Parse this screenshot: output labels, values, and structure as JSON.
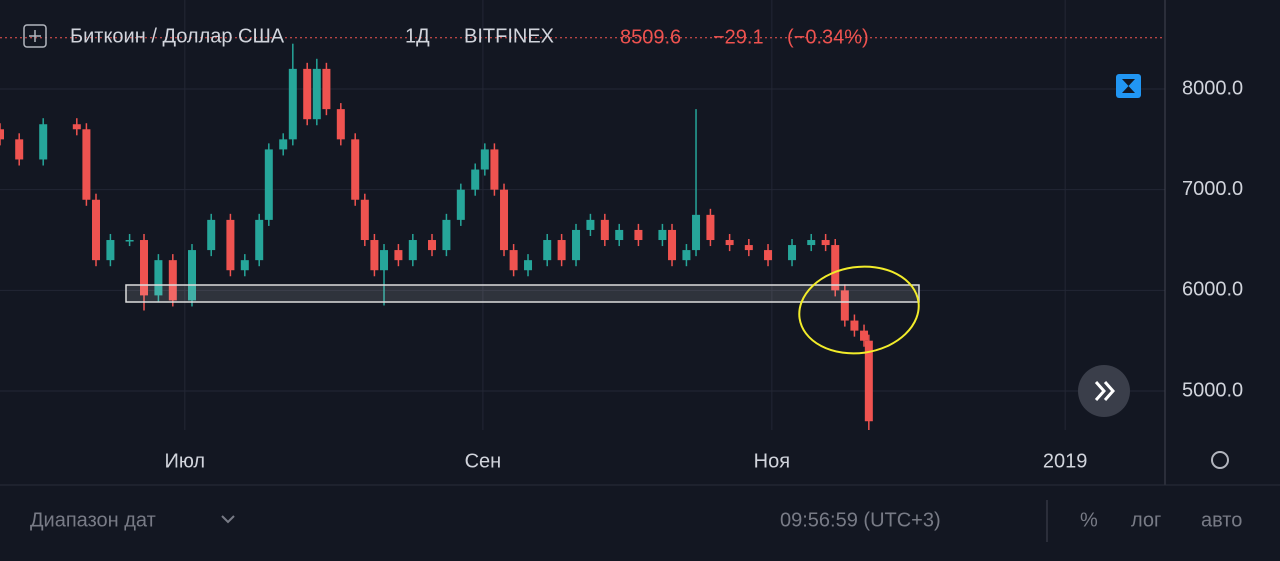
{
  "header": {
    "symbol": "Биткоин / Доллар США",
    "interval": "1Д",
    "exchange": "BITFINEX",
    "change": "−29.1",
    "change_percent": "(−0.34%)"
  },
  "chart_data": {
    "type": "candlestick",
    "last_price": 8509.6,
    "up_color": "#26a69a",
    "down_color": "#ef5350",
    "grid": true,
    "xlim": [
      0,
      242.7
    ],
    "xticks": [
      {
        "value": 38.5,
        "label": "Июл"
      },
      {
        "value": 100.6,
        "label": "Сен"
      },
      {
        "value": 160.8,
        "label": "Ноя"
      },
      {
        "value": 221.9,
        "label": "2019"
      }
    ],
    "ylim": [
      4613,
      8884
    ],
    "yticks": [
      {
        "value": 5000,
        "label": "5000.0"
      },
      {
        "value": 6000,
        "label": "6000.0"
      },
      {
        "value": 7000,
        "label": "7000.0"
      },
      {
        "value": 8000,
        "label": "8000.0"
      }
    ],
    "candles": {
      "x": [
        0,
        4,
        9,
        16,
        18,
        20,
        23,
        27,
        30,
        33,
        36,
        40,
        44,
        48,
        51,
        54,
        56,
        59,
        61,
        64,
        66,
        68,
        71,
        74,
        76,
        78,
        80,
        83,
        86,
        90,
        93,
        96,
        99,
        101,
        103,
        105,
        107,
        110,
        114,
        117,
        120,
        123,
        126,
        129,
        133,
        138,
        140,
        143,
        145,
        148,
        152,
        156,
        160,
        165,
        169,
        172,
        174,
        176,
        178,
        180,
        181
      ],
      "open": [
        7600,
        7500,
        7300,
        7650,
        7600,
        6900,
        6300,
        6500,
        6500,
        5950,
        6300,
        5900,
        6400,
        6700,
        6200,
        6300,
        6700,
        7400,
        7500,
        8200,
        7700,
        8200,
        7800,
        7500,
        6900,
        6500,
        6200,
        6400,
        6300,
        6500,
        6400,
        6700,
        7000,
        7200,
        7400,
        7000,
        6400,
        6200,
        6300,
        6500,
        6300,
        6600,
        6700,
        6500,
        6600,
        6500,
        6600,
        6300,
        6400,
        6750,
        6500,
        6450,
        6400,
        6300,
        6450,
        6500,
        6450,
        6000,
        5700,
        5600,
        5500
      ],
      "high": [
        7660,
        7560,
        7710,
        7710,
        7660,
        6960,
        6560,
        6560,
        6560,
        6360,
        6360,
        6460,
        6760,
        6760,
        6360,
        6760,
        7460,
        7560,
        8450,
        8260,
        8300,
        8260,
        7860,
        7560,
        6960,
        6560,
        6460,
        6460,
        6560,
        6560,
        6760,
        7060,
        7260,
        7460,
        7460,
        7060,
        6460,
        6360,
        6560,
        6560,
        6660,
        6760,
        6760,
        6660,
        6660,
        6660,
        6660,
        6460,
        7800,
        6810,
        6560,
        6510,
        6460,
        6510,
        6560,
        6560,
        6510,
        6060,
        5760,
        5660,
        5560
      ],
      "low": [
        7440,
        7240,
        7240,
        7540,
        6840,
        6240,
        6240,
        6440,
        5800,
        5890,
        5840,
        5840,
        6340,
        6140,
        6140,
        6240,
        6640,
        7340,
        7440,
        7640,
        7640,
        7740,
        7440,
        6840,
        6440,
        6140,
        5850,
        6240,
        6240,
        6340,
        6340,
        6640,
        6940,
        7140,
        6940,
        6340,
        6140,
        6140,
        6240,
        6240,
        6240,
        6540,
        6440,
        6440,
        6440,
        6440,
        6240,
        6240,
        6340,
        6440,
        6390,
        6340,
        6240,
        6240,
        6390,
        6390,
        5940,
        5640,
        5540,
        5440,
        4600
      ],
      "close": [
        7500,
        7300,
        7650,
        7600,
        6900,
        6300,
        6500,
        6500,
        5950,
        6300,
        5900,
        6400,
        6700,
        6200,
        6300,
        6700,
        7400,
        7500,
        8200,
        7700,
        8200,
        7800,
        7500,
        6900,
        6500,
        6200,
        6400,
        6300,
        6500,
        6400,
        6700,
        7000,
        7200,
        7400,
        7000,
        6400,
        6200,
        6300,
        6500,
        6300,
        6600,
        6700,
        6500,
        6600,
        6500,
        6600,
        6300,
        6400,
        6750,
        6500,
        6450,
        6400,
        6300,
        6450,
        6500,
        6450,
        6000,
        5700,
        5600,
        5500,
        4700
      ]
    }
  },
  "footer": {
    "date_range": "Диапазон дат",
    "time": "09:56:59 (UTC+3)",
    "percent": "%",
    "log": "лог",
    "auto": "авто"
  }
}
